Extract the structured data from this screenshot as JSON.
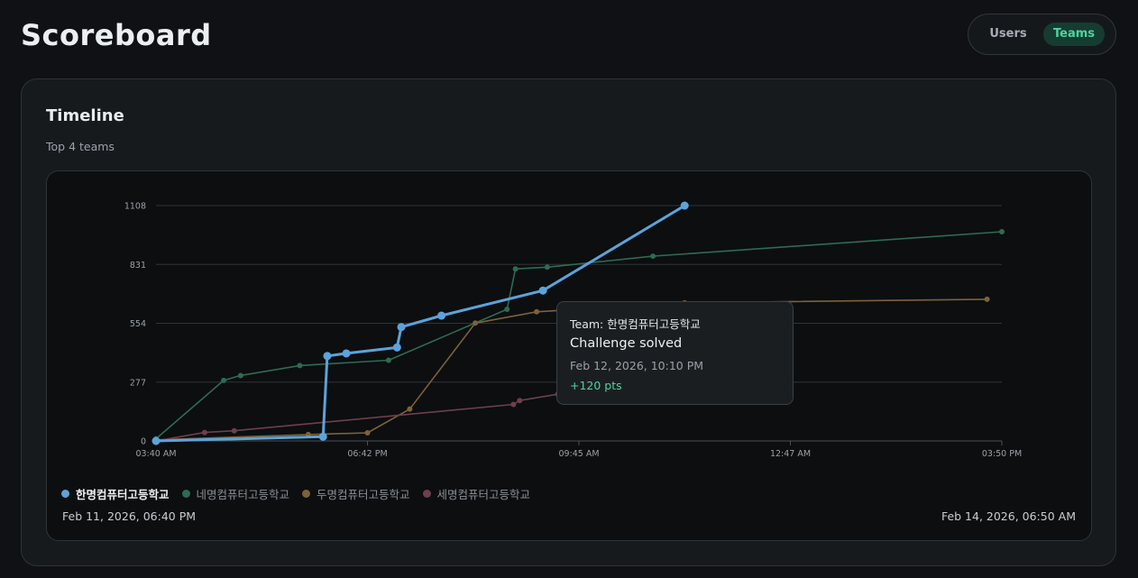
{
  "header": {
    "title": "Scoreboard",
    "toggle": {
      "users_label": "Users",
      "teams_label": "Teams",
      "selected": "Teams"
    }
  },
  "card": {
    "title": "Timeline",
    "subtitle": "Top 4 teams"
  },
  "tooltip": {
    "team": "Team: 한명컴퓨터고등학교",
    "event": "Challenge solved",
    "time": "Feb 12, 2026, 10:10 PM",
    "points": "+120 pts"
  },
  "range": {
    "start": "Feb 11, 2026, 06:40 PM",
    "end": "Feb 14, 2026, 06:50 AM"
  },
  "colors": {
    "accent": "#4fd3a0",
    "background": "#0f1114"
  },
  "chart_data": {
    "type": "line",
    "x_tick_labels": [
      "03:40 AM",
      "06:42 PM",
      "09:45 AM",
      "12:47 AM",
      "03:50 PM"
    ],
    "x_range": [
      0,
      4
    ],
    "y_ticks": [
      0,
      277,
      554,
      831,
      1108
    ],
    "ylim": [
      0,
      1108
    ],
    "grid": true,
    "legend_position": "bottom-left",
    "series": [
      {
        "name": "한명컴퓨터고등학교",
        "color": "#5ba3db",
        "highlighted": true,
        "points": [
          [
            0.0,
            0
          ],
          [
            0.79,
            20
          ],
          [
            0.81,
            400
          ],
          [
            0.9,
            412
          ],
          [
            1.14,
            440
          ],
          [
            1.16,
            536
          ],
          [
            1.35,
            590
          ],
          [
            1.83,
            708
          ],
          [
            2.5,
            1108
          ]
        ]
      },
      {
        "name": "네명컴퓨터고등학교",
        "color": "#2e6b52",
        "highlighted": false,
        "points": [
          [
            0.0,
            10
          ],
          [
            0.32,
            285
          ],
          [
            0.4,
            308
          ],
          [
            0.68,
            355
          ],
          [
            1.1,
            380
          ],
          [
            1.66,
            620
          ],
          [
            1.7,
            810
          ],
          [
            1.85,
            818
          ],
          [
            2.35,
            870
          ],
          [
            4.0,
            985
          ]
        ]
      },
      {
        "name": "두명컴퓨터고등학교",
        "color": "#7d6238",
        "highlighted": false,
        "points": [
          [
            0.0,
            5
          ],
          [
            0.72,
            30
          ],
          [
            1.0,
            38
          ],
          [
            1.2,
            150
          ],
          [
            1.51,
            555
          ],
          [
            1.8,
            608
          ],
          [
            2.5,
            650
          ],
          [
            3.93,
            667
          ]
        ]
      },
      {
        "name": "세명컴퓨터고등학교",
        "color": "#6e3f4c",
        "highlighted": false,
        "points": [
          [
            0.0,
            0
          ],
          [
            0.23,
            40
          ],
          [
            0.37,
            48
          ],
          [
            1.69,
            172
          ],
          [
            1.72,
            190
          ],
          [
            1.9,
            220
          ]
        ]
      }
    ]
  }
}
